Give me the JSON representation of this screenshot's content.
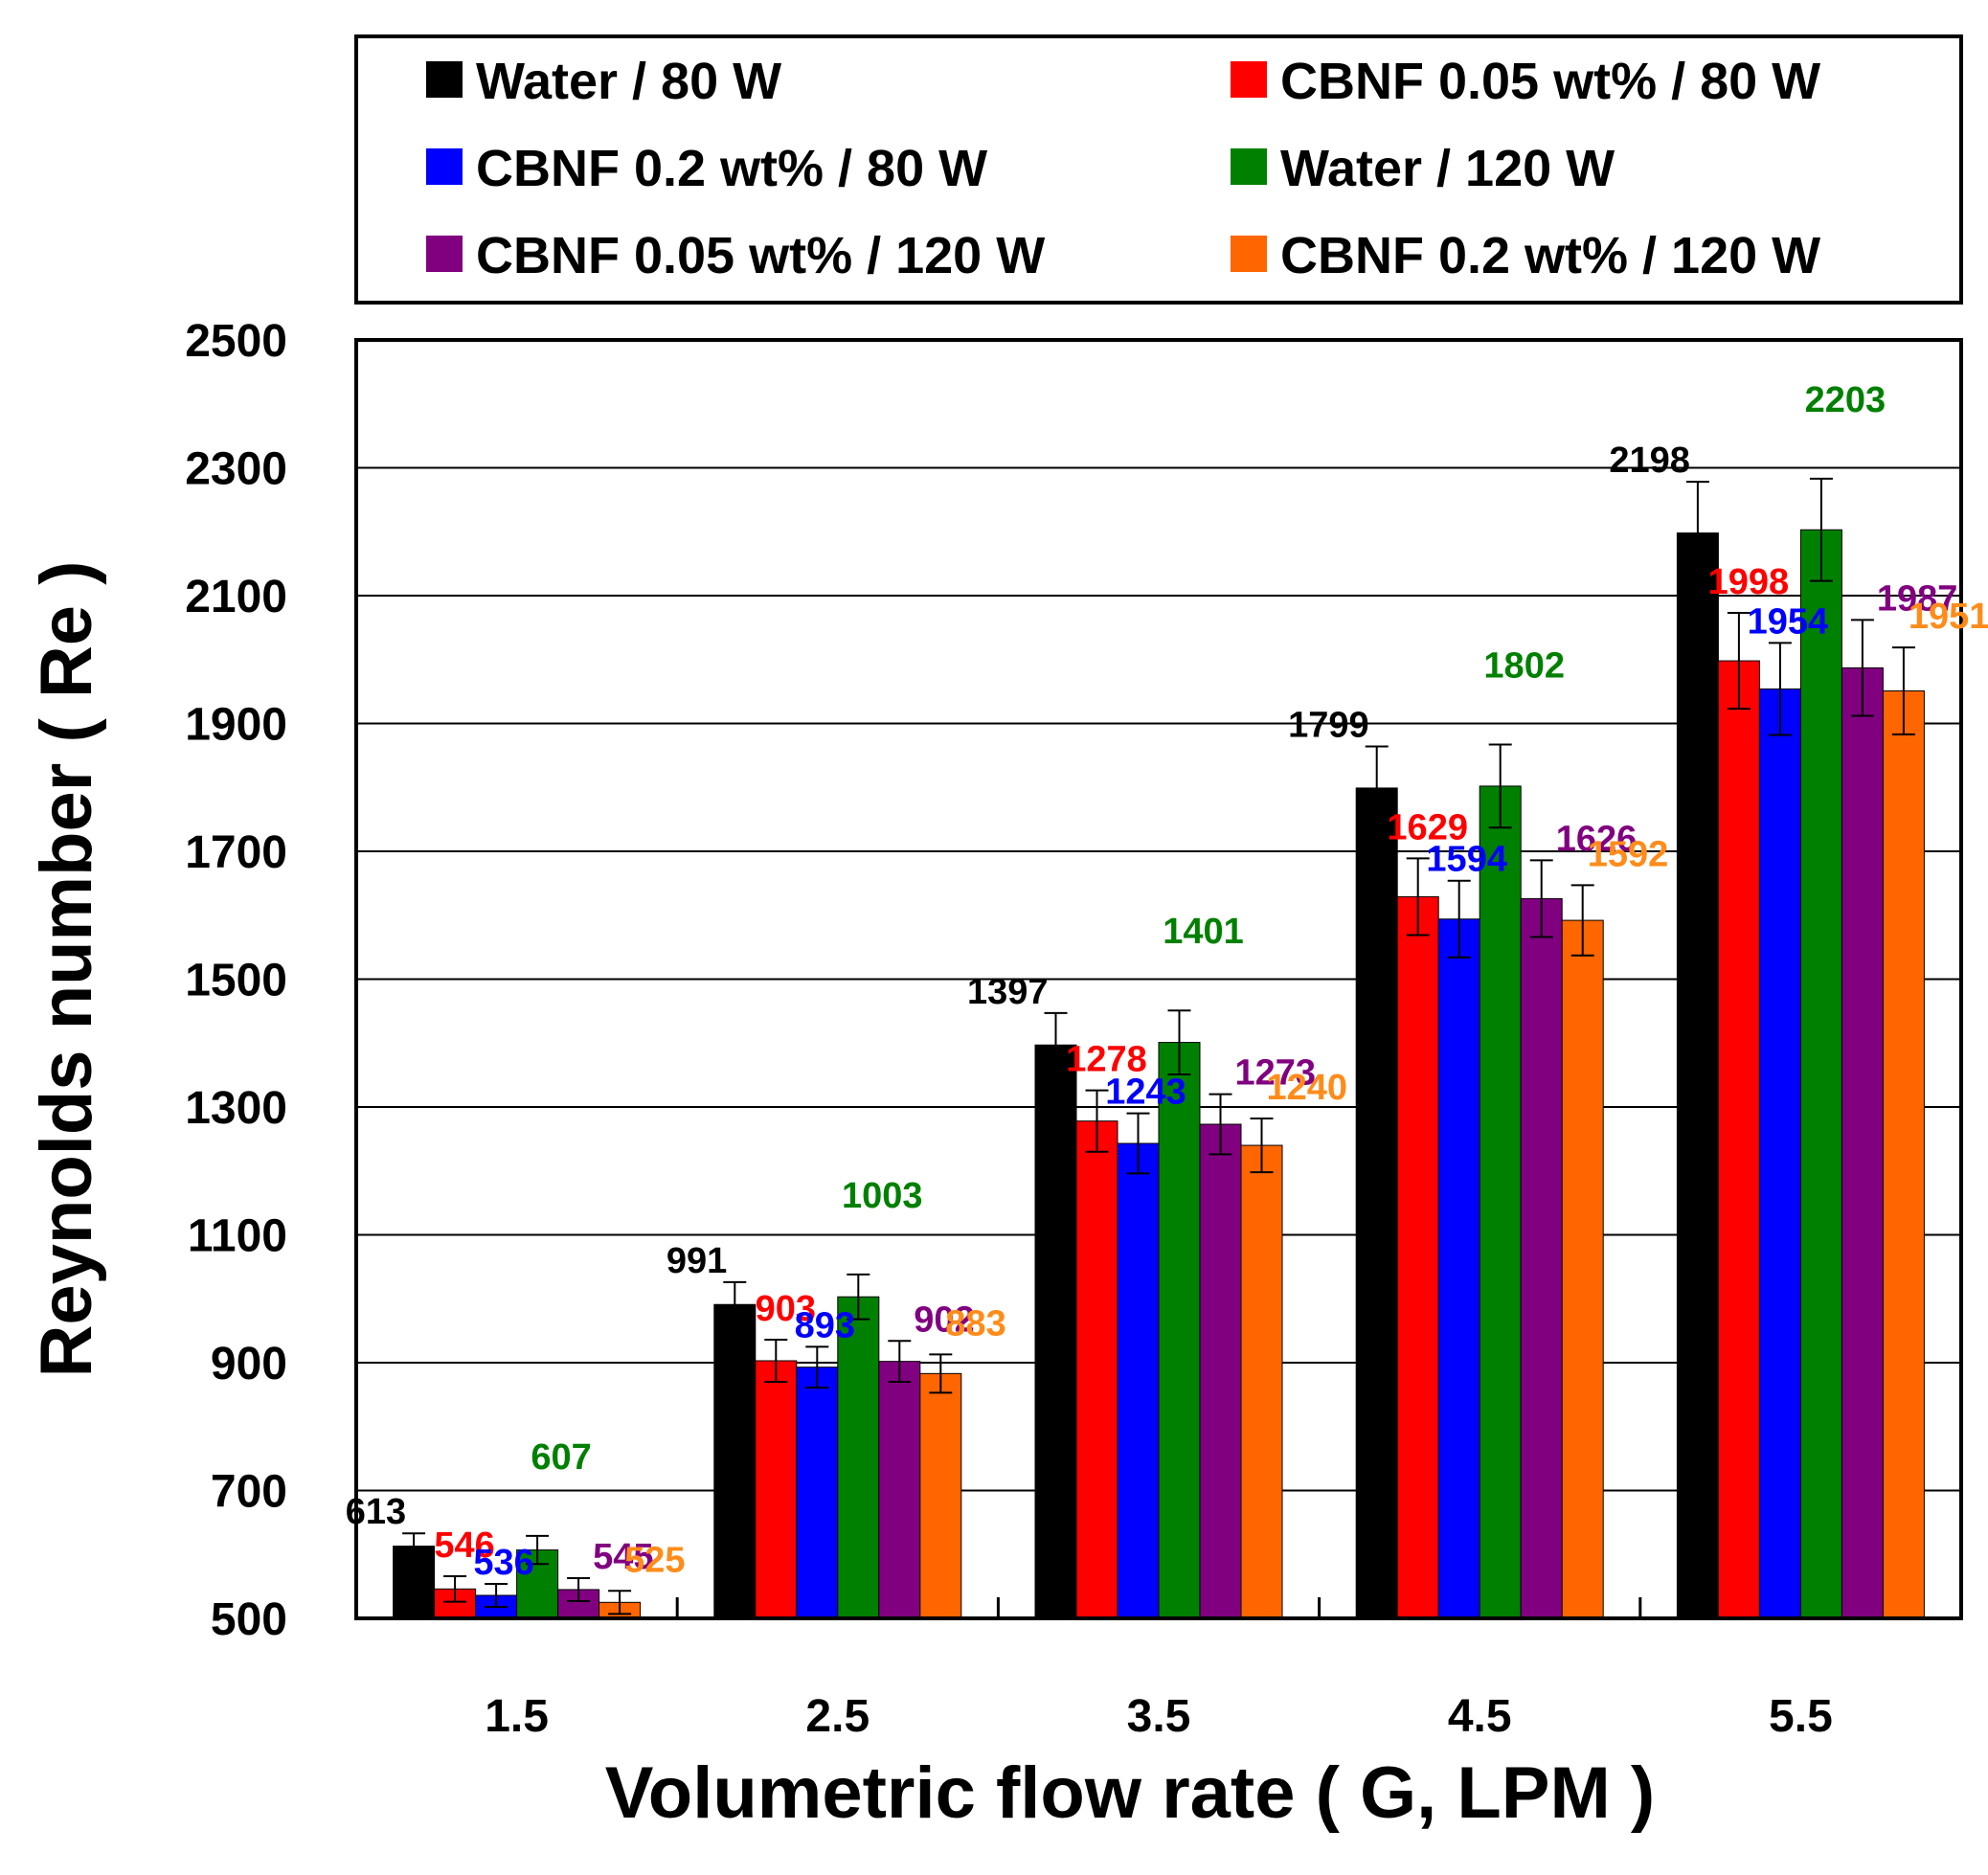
{
  "chart_data": {
    "type": "bar",
    "title": "",
    "xlabel": "Volumetric flow rate ( G, LPM )",
    "ylabel": "Reynolds number ( Re )",
    "ylim": [
      500,
      2500
    ],
    "yticks": [
      "500",
      "700",
      "900",
      "1100",
      "1300",
      "1500",
      "1700",
      "1900",
      "2100",
      "2300",
      "2500"
    ],
    "grid": true,
    "legend_position": "top",
    "categories": [
      "1.5",
      "2.5",
      "3.5",
      "4.5",
      "5.5"
    ],
    "series": [
      {
        "name": "Water / 80 W",
        "color": "#000000",
        "values": [
          613,
          991,
          1397,
          1799,
          2198
        ],
        "errors": [
          20,
          35,
          50,
          65,
          80
        ]
      },
      {
        "name": "CBNF 0.05 wt% / 80 W",
        "color": "#ff0000",
        "values": [
          546,
          903,
          1278,
          1629,
          1998
        ],
        "errors": [
          20,
          33,
          48,
          60,
          75
        ]
      },
      {
        "name": "CBNF 0.2 wt% / 80 W",
        "color": "#0000ff",
        "values": [
          536,
          893,
          1243,
          1594,
          1954
        ],
        "errors": [
          18,
          32,
          47,
          60,
          72
        ]
      },
      {
        "name": "Water / 120 W",
        "color": "#008000",
        "values": [
          607,
          1003,
          1401,
          1802,
          2203
        ],
        "errors": [
          22,
          35,
          50,
          65,
          80
        ]
      },
      {
        "name": "CBNF 0.05 wt% / 120 W",
        "color": "#800080",
        "values": [
          545,
          902,
          1273,
          1626,
          1987
        ],
        "errors": [
          18,
          32,
          47,
          60,
          75
        ]
      },
      {
        "name": "CBNF 0.2 wt% / 120 W",
        "color": "#ff6600",
        "values": [
          525,
          883,
          1240,
          1592,
          1951
        ],
        "errors": [
          18,
          30,
          42,
          55,
          68
        ]
      }
    ],
    "data_labels": [
      [
        "613",
        "991",
        "1397",
        "1799",
        "2198"
      ],
      [
        "546",
        "903",
        "1278",
        "1629",
        "1998"
      ],
      [
        "536",
        "893",
        "1243",
        "1594",
        "1954"
      ],
      [
        "607",
        "1003",
        "1401",
        "1802",
        "2203"
      ],
      [
        "545",
        "902",
        "1273",
        "1626",
        "1987"
      ],
      [
        "525",
        "883",
        "1240",
        "1592",
        "1951"
      ]
    ],
    "label_colors": [
      "#000000",
      "#ff0000",
      "#0000ff",
      "#008000",
      "#800080",
      "#ff8c1a"
    ]
  }
}
